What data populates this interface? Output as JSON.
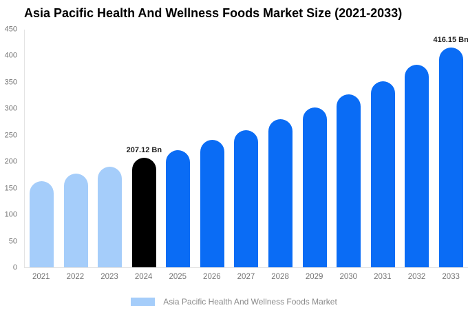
{
  "page": {
    "title": "Asia Pacific Health And Wellness Foods Market Size (2021-2033)"
  },
  "legend": {
    "label": "Asia Pacific Health And Wellness Foods Market",
    "swatch_color": "#a5cdfa"
  },
  "colors": {
    "historical_bar": "#a5cdfa",
    "highlight_bar": "#000000",
    "forecast_bar": "#0a6cf5",
    "axis_line": "#e3e3e3",
    "tick_text": "#757575",
    "annotation_text": "#222222",
    "legend_text": "#8a8a8a"
  },
  "chart_data": {
    "type": "bar",
    "title": "Asia Pacific Health And Wellness Foods Market Size (2021-2033)",
    "categories": [
      "2021",
      "2022",
      "2023",
      "2024",
      "2025",
      "2026",
      "2027",
      "2028",
      "2029",
      "2030",
      "2031",
      "2032",
      "2033"
    ],
    "values": [
      163,
      178,
      191,
      207.12,
      222,
      241,
      259,
      280,
      302,
      327,
      352,
      383,
      416.15
    ],
    "unit": "Bn",
    "bar_colors": [
      "#a5cdfa",
      "#a5cdfa",
      "#a5cdfa",
      "#000000",
      "#0a6cf5",
      "#0a6cf5",
      "#0a6cf5",
      "#0a6cf5",
      "#0a6cf5",
      "#0a6cf5",
      "#0a6cf5",
      "#0a6cf5",
      "#0a6cf5"
    ],
    "annotations": [
      {
        "category": "2024",
        "text": "207.12 Bn"
      },
      {
        "category": "2033",
        "text": "416.15 Bn"
      }
    ],
    "xlabel": "",
    "ylabel": "",
    "ylim": [
      0,
      450
    ],
    "yticks": [
      0,
      50,
      100,
      150,
      200,
      250,
      300,
      350,
      400,
      450
    ],
    "grid": false,
    "legend_position": "bottom",
    "legend_entries": [
      "Asia Pacific Health And Wellness Foods Market"
    ]
  }
}
